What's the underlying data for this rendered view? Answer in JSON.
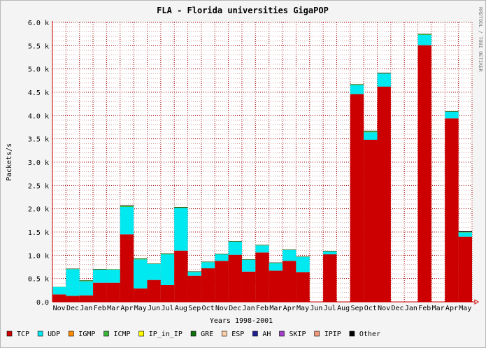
{
  "chart_data": {
    "type": "bar",
    "stacked": true,
    "title": "FLA - Florida universities GigaPOP",
    "xlabel": "Years 1998-2001",
    "ylabel": "Packets/s",
    "watermark": "RRDTOOL / TOBI OETIKER",
    "ylim": [
      0,
      6000
    ],
    "yticks": [
      "0.0",
      "0.5 k",
      "1.0 k",
      "1.5 k",
      "2.0 k",
      "2.5 k",
      "3.0 k",
      "3.5 k",
      "4.0 k",
      "4.5 k",
      "5.0 k",
      "5.5 k",
      "6.0 k"
    ],
    "categories": [
      "Nov",
      "Dec",
      "Jan",
      "Feb",
      "Mar",
      "Apr",
      "May",
      "Jun",
      "Jul",
      "Aug",
      "Sep",
      "Oct",
      "Nov",
      "Dec",
      "Jan",
      "Feb",
      "Mar",
      "Apr",
      "May",
      "Jun",
      "Jul",
      "Aug",
      "Sep",
      "Oct",
      "Nov",
      "Dec",
      "Jan",
      "Feb",
      "Mar",
      "Apr",
      "May"
    ],
    "series": [
      {
        "name": "TCP",
        "color": "#cc0000",
        "values": [
          160,
          130,
          140,
          410,
          410,
          1450,
          290,
          470,
          360,
          1100,
          560,
          720,
          880,
          1010,
          650,
          1060,
          670,
          880,
          640,
          0,
          1020,
          0,
          4460,
          3480,
          4620,
          0,
          0,
          5510,
          0,
          3940,
          1400
        ]
      },
      {
        "name": "UDP",
        "color": "#00e8f0",
        "values": [
          160,
          570,
          300,
          280,
          280,
          590,
          620,
          340,
          660,
          910,
          80,
          130,
          140,
          280,
          250,
          150,
          160,
          230,
          320,
          0,
          60,
          0,
          190,
          160,
          280,
          0,
          0,
          220,
          0,
          140,
          90
        ]
      },
      {
        "name": "IGMP",
        "color": "#ff8c00",
        "values": [
          0,
          0,
          0,
          0,
          0,
          0,
          0,
          0,
          0,
          0,
          0,
          0,
          0,
          0,
          0,
          0,
          0,
          0,
          0,
          0,
          0,
          0,
          0,
          0,
          0,
          0,
          0,
          0,
          0,
          0,
          0
        ]
      },
      {
        "name": "ICMP",
        "color": "#3cb43c",
        "values": [
          5,
          10,
          20,
          10,
          10,
          20,
          20,
          10,
          15,
          20,
          10,
          10,
          10,
          10,
          10,
          10,
          10,
          10,
          10,
          0,
          10,
          0,
          20,
          20,
          10,
          0,
          0,
          20,
          0,
          10,
          10
        ]
      },
      {
        "name": "IP_in_IP",
        "color": "#ffff00",
        "values": [
          0,
          0,
          0,
          0,
          0,
          0,
          0,
          0,
          0,
          0,
          0,
          0,
          0,
          0,
          0,
          0,
          0,
          0,
          0,
          0,
          0,
          0,
          0,
          0,
          0,
          0,
          0,
          0,
          0,
          0,
          0
        ]
      },
      {
        "name": "GRE",
        "color": "#107010",
        "values": [
          0,
          0,
          0,
          0,
          0,
          0,
          0,
          0,
          0,
          0,
          0,
          0,
          0,
          0,
          0,
          0,
          0,
          0,
          0,
          0,
          0,
          0,
          0,
          0,
          0,
          0,
          0,
          0,
          0,
          0,
          0
        ]
      },
      {
        "name": "ESP",
        "color": "#ffd0a8",
        "values": [
          0,
          0,
          0,
          0,
          0,
          0,
          0,
          0,
          0,
          0,
          0,
          0,
          0,
          0,
          0,
          0,
          0,
          0,
          0,
          0,
          0,
          0,
          0,
          0,
          0,
          0,
          0,
          0,
          0,
          0,
          0
        ]
      },
      {
        "name": "AH",
        "color": "#202090",
        "values": [
          0,
          0,
          0,
          0,
          0,
          0,
          0,
          0,
          0,
          0,
          0,
          0,
          0,
          0,
          0,
          0,
          0,
          0,
          0,
          0,
          0,
          0,
          0,
          0,
          0,
          0,
          0,
          0,
          0,
          0,
          0
        ]
      },
      {
        "name": "SKIP",
        "color": "#a040c8",
        "values": [
          0,
          0,
          0,
          0,
          0,
          0,
          0,
          0,
          0,
          0,
          0,
          0,
          0,
          0,
          0,
          0,
          0,
          0,
          0,
          0,
          0,
          0,
          0,
          0,
          0,
          0,
          0,
          0,
          0,
          0,
          0
        ]
      },
      {
        "name": "IPIP",
        "color": "#f09878",
        "values": [
          0,
          0,
          0,
          0,
          0,
          0,
          0,
          0,
          0,
          0,
          0,
          0,
          0,
          0,
          0,
          0,
          0,
          0,
          0,
          0,
          0,
          0,
          0,
          0,
          0,
          0,
          0,
          0,
          0,
          0,
          0
        ]
      },
      {
        "name": "Other",
        "color": "#000000",
        "values": [
          0,
          5,
          5,
          5,
          0,
          10,
          5,
          5,
          5,
          10,
          5,
          5,
          5,
          5,
          5,
          5,
          5,
          5,
          5,
          0,
          5,
          0,
          5,
          10,
          10,
          0,
          0,
          5,
          0,
          5,
          15
        ]
      }
    ],
    "grid": true,
    "legend_position": "bottom",
    "colors": {
      "background": "#f4f4f4",
      "grid": "#a00000",
      "axis": "#cc0000",
      "frame": "#b8b8b8"
    }
  }
}
